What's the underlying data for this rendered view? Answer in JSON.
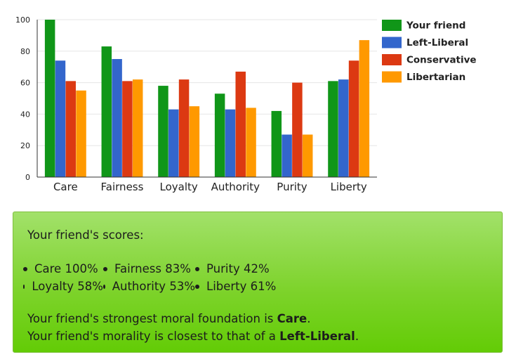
{
  "chart_data": {
    "type": "bar",
    "categories": [
      "Care",
      "Fairness",
      "Loyalty",
      "Authority",
      "Purity",
      "Liberty"
    ],
    "series": [
      {
        "name": "Your friend",
        "color": "#109618",
        "values": [
          100,
          83,
          58,
          53,
          42,
          61
        ]
      },
      {
        "name": "Left-Liberal",
        "color": "#3366cc",
        "values": [
          74,
          75,
          43,
          43,
          27,
          62
        ]
      },
      {
        "name": "Conservative",
        "color": "#dc3912",
        "values": [
          61,
          61,
          62,
          67,
          60,
          74
        ]
      },
      {
        "name": "Libertarian",
        "color": "#ff9900",
        "values": [
          55,
          62,
          45,
          44,
          27,
          87
        ]
      }
    ],
    "yticks": [
      0,
      20,
      40,
      60,
      80,
      100
    ],
    "ylim": [
      0,
      100
    ],
    "grid": true,
    "legend_position": "right"
  },
  "panel": {
    "heading": "Your friend's scores:",
    "scores": [
      [
        "Care 100%",
        "Fairness 83%",
        "Purity 42%"
      ],
      [
        "Loyalty 58%",
        "Authority 53%",
        "Liberty 61%"
      ]
    ],
    "strongest_prefix": "Your friend's strongest moral foundation is ",
    "strongest_value": "Care",
    "closest_prefix": "Your friend's morality is closest to that of a ",
    "closest_value": "Left-Liberal",
    "period": "."
  }
}
